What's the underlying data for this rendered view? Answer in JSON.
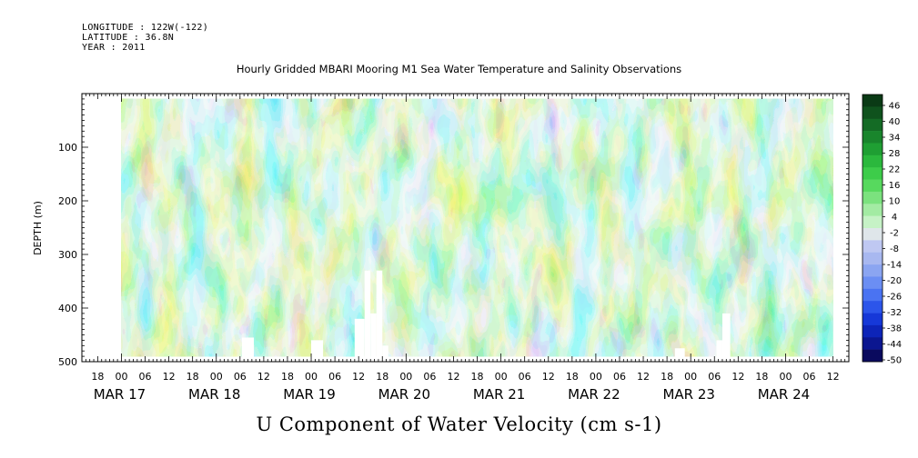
{
  "header": {
    "longitude": "LONGITUDE : 122W(-122)",
    "latitude": "LATITUDE : 36.8N",
    "year": "YEAR : 2011"
  },
  "chart_data": {
    "type": "heatmap",
    "title": "Hourly Gridded MBARI Mooring M1 Sea Water Temperature and Salinity Observations",
    "xlabel": "U Component of Water Velocity (cm s-1)",
    "ylabel": "DEPTH (m)",
    "x_range": [
      "2011-03-16T14:00",
      "2011-03-24T16:00"
    ],
    "data_x_range": [
      "2011-03-17T00:00",
      "2011-03-24T12:00"
    ],
    "ylim": [
      500,
      0
    ],
    "data_depth_range": [
      10,
      490
    ],
    "y_ticks": [
      100,
      200,
      300,
      400,
      500
    ],
    "hour_tick_labels": [
      "18",
      "00",
      "06",
      "12",
      "18",
      "00",
      "06",
      "12",
      "18",
      "00",
      "06",
      "12",
      "18",
      "00",
      "06",
      "12",
      "18",
      "00",
      "06",
      "12",
      "18",
      "00",
      "06",
      "12",
      "18",
      "00",
      "06",
      "12",
      "18",
      "00",
      "06",
      "12"
    ],
    "day_labels": [
      "MAR 17",
      "MAR 18",
      "MAR 19",
      "MAR 20",
      "MAR 21",
      "MAR 22",
      "MAR 23",
      "MAR 24"
    ],
    "colorbar": {
      "min": -50,
      "max": 50,
      "labels": [
        "46",
        "40",
        "34",
        "28",
        "22",
        "16",
        "10",
        "4",
        "-2",
        "-8",
        "-14",
        "-20",
        "-26",
        "-32",
        "-38",
        "-44",
        "-50"
      ],
      "colors": [
        "#0a0a5e",
        "#0b1690",
        "#0d24b8",
        "#1638d8",
        "#2c55ea",
        "#4a73f2",
        "#6b8ef3",
        "#8ba5f1",
        "#a8b8f0",
        "#bfc8f2",
        "#dfe6ea",
        "#c6f2c6",
        "#a3eba3",
        "#7be27e",
        "#57d95e",
        "#3dcc4a",
        "#2bb83d",
        "#1f9f33",
        "#19852c",
        "#146b25",
        "#0f521d",
        "#0a3a15"
      ]
    },
    "blank_regions": [
      {
        "x_start": "2011-03-18T06:30",
        "x_end": "2011-03-18T09:30",
        "depth_top": 455
      },
      {
        "x_start": "2011-03-19T00:00",
        "x_end": "2011-03-19T03:00",
        "depth_top": 460
      },
      {
        "x_start": "2011-03-19T11:00",
        "x_end": "2011-03-19T13:30",
        "depth_top": 420
      },
      {
        "x_start": "2011-03-19T13:30",
        "x_end": "2011-03-19T15:00",
        "depth_top": 330
      },
      {
        "x_start": "2011-03-19T15:00",
        "x_end": "2011-03-19T16:30",
        "depth_top": 410
      },
      {
        "x_start": "2011-03-19T16:30",
        "x_end": "2011-03-19T18:00",
        "depth_top": 330
      },
      {
        "x_start": "2011-03-19T18:00",
        "x_end": "2011-03-19T19:30",
        "depth_top": 470
      },
      {
        "x_start": "2011-03-22T20:00",
        "x_end": "2011-03-22T22:30",
        "depth_top": 475
      },
      {
        "x_start": "2011-03-23T06:30",
        "x_end": "2011-03-23T08:00",
        "depth_top": 460
      },
      {
        "x_start": "2011-03-23T08:00",
        "x_end": "2011-03-23T10:00",
        "depth_top": 410
      }
    ]
  }
}
